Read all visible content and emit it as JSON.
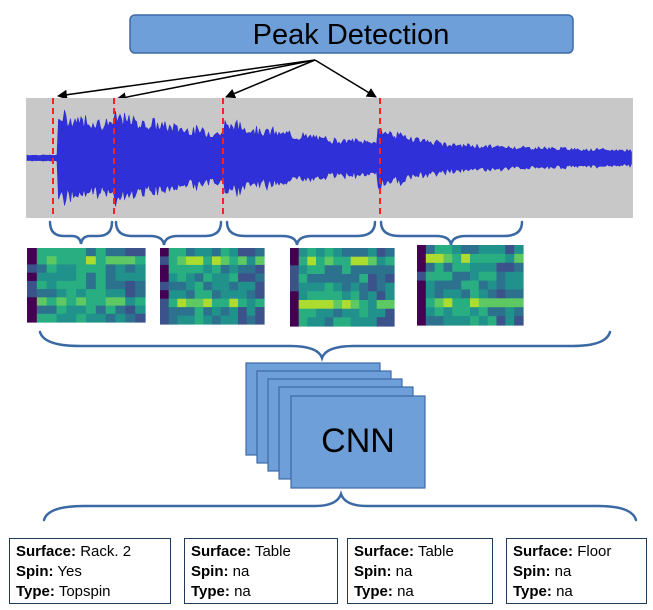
{
  "title": "Peak Detection",
  "model_label": "CNN",
  "colors": {
    "title_fill": "#6f9fd8",
    "title_stroke": "#3e6aa6",
    "waveform_bg": "#c8c8c8",
    "waveform": "#3030d8",
    "peak_marker": "#ff2020",
    "brace": "#3a69a3",
    "cnn_fill": "#6f9fd8",
    "cnn_stroke": "#3e6aa6",
    "box_border": "#1f3b5c"
  },
  "peaks": [
    {
      "onset": 0.05,
      "amplitude": 1.0,
      "decay": 0.9
    },
    {
      "onset": 0.145,
      "amplitude": 1.0,
      "decay": 0.55
    },
    {
      "onset": 0.325,
      "amplitude": 0.85,
      "decay": 0.45
    },
    {
      "onset": 0.58,
      "amplitude": 0.7,
      "decay": 0.25
    }
  ],
  "outputs": [
    {
      "surface_label": "Surface:",
      "surface": "Rack. 2",
      "spin_label": "Spin:",
      "spin": "Yes",
      "type_label": "Type:",
      "type": "Topspin"
    },
    {
      "surface_label": "Surface:",
      "surface": "Table",
      "spin_label": "Spin:",
      "spin": "na",
      "type_label": "Type:",
      "type": "na"
    },
    {
      "surface_label": "Surface:",
      "surface": "Table",
      "spin_label": "Spin:",
      "spin": "na",
      "type_label": "Type:",
      "type": "na"
    },
    {
      "surface_label": "Surface:",
      "surface": "Floor",
      "spin_label": "Spin:",
      "spin": "na",
      "type_label": "Type:",
      "type": "na"
    }
  ]
}
